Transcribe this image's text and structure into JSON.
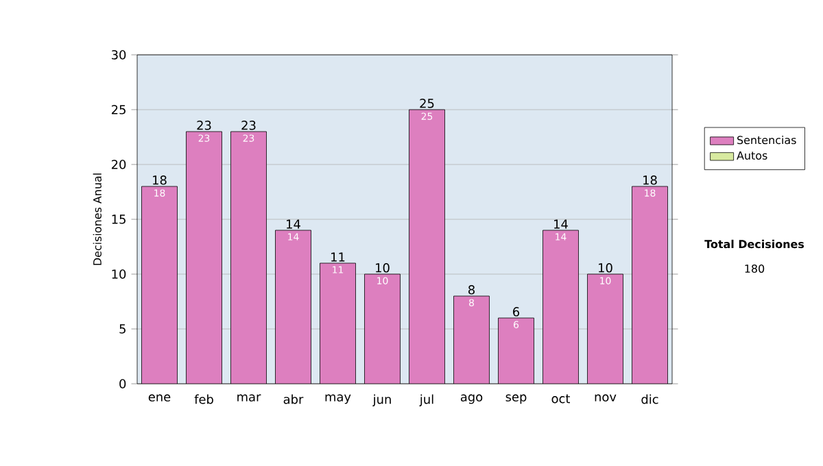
{
  "chart_data": {
    "type": "bar",
    "stacked": true,
    "ylabel": "Decisiones Anual",
    "categories": [
      "ene",
      "feb",
      "mar",
      "abr",
      "may",
      "jun",
      "jul",
      "ago",
      "sep",
      "oct",
      "nov",
      "dic"
    ],
    "series": [
      {
        "name": "Sentencias",
        "color": "#dd7fbf",
        "values": [
          18,
          23,
          23,
          14,
          11,
          10,
          25,
          8,
          6,
          14,
          10,
          18
        ],
        "value_labels": [
          "18",
          "23",
          "23",
          "14",
          "11",
          "10",
          "25",
          "8",
          "6",
          "14",
          "10",
          "18"
        ]
      },
      {
        "name": "Autos",
        "color": "#d8eaa0",
        "values": [
          0,
          0,
          0,
          0,
          0,
          0,
          0,
          0,
          0,
          0,
          0,
          0
        ]
      }
    ],
    "totals": [
      "18",
      "23",
      "23",
      "14",
      "11",
      "10",
      "25",
      "8",
      "6",
      "14",
      "10",
      "18"
    ],
    "ylim": [
      0,
      30
    ],
    "yticks": [
      0,
      5,
      10,
      15,
      20,
      25,
      30
    ],
    "grid": "y",
    "legend": "right",
    "annotations": [
      "Total Decisiones",
      "180"
    ]
  }
}
